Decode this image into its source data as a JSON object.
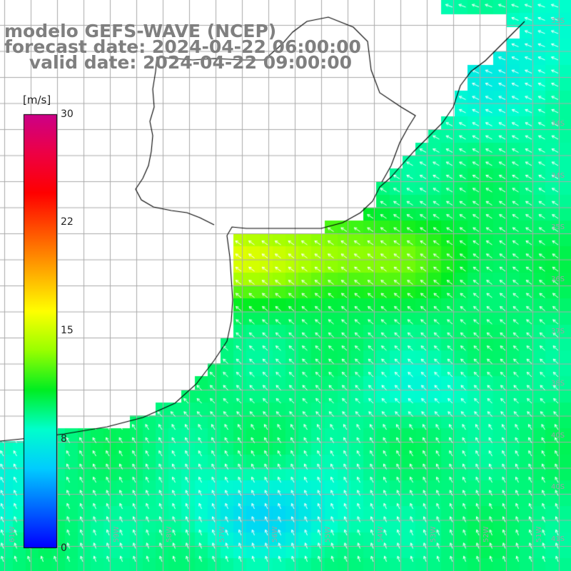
{
  "title": {
    "line1": "modelo GEFS-WAVE (NCEP)",
    "line2": "forecast date: 2024-04-22 06:00:00",
    "line3": "    valid date: 2024-04-22 09:00:00"
  },
  "colorbar": {
    "unit": "[m/s]",
    "ticks": [
      "30",
      "22",
      "15",
      "8",
      "0"
    ],
    "tick_values": [
      30,
      22,
      15,
      8,
      0
    ],
    "min": 0,
    "max": 30,
    "stops": [
      "#0000ff",
      "#0066ff",
      "#00ccff",
      "#00ffcc",
      "#00ee22",
      "#99ff00",
      "#ffff00",
      "#ffaa00",
      "#ff5500",
      "#ff0000",
      "#ee0044",
      "#cc0088"
    ]
  },
  "map": {
    "variable": "wind speed",
    "lat_labels": [
      "33S",
      "34S",
      "35S",
      "36S",
      "37S",
      "38S",
      "39S",
      "40S",
      "41S"
    ],
    "lon_labels": [
      "61W",
      "60W",
      "59W",
      "58W",
      "57W",
      "56W",
      "55W",
      "54W",
      "53W",
      "52W",
      "51W"
    ],
    "colors": {
      "land": "#ffffff",
      "coast": "#000000",
      "grid": "#8f8f8f",
      "arrow": "#ffffff",
      "label": "#9aa3a6"
    }
  }
}
